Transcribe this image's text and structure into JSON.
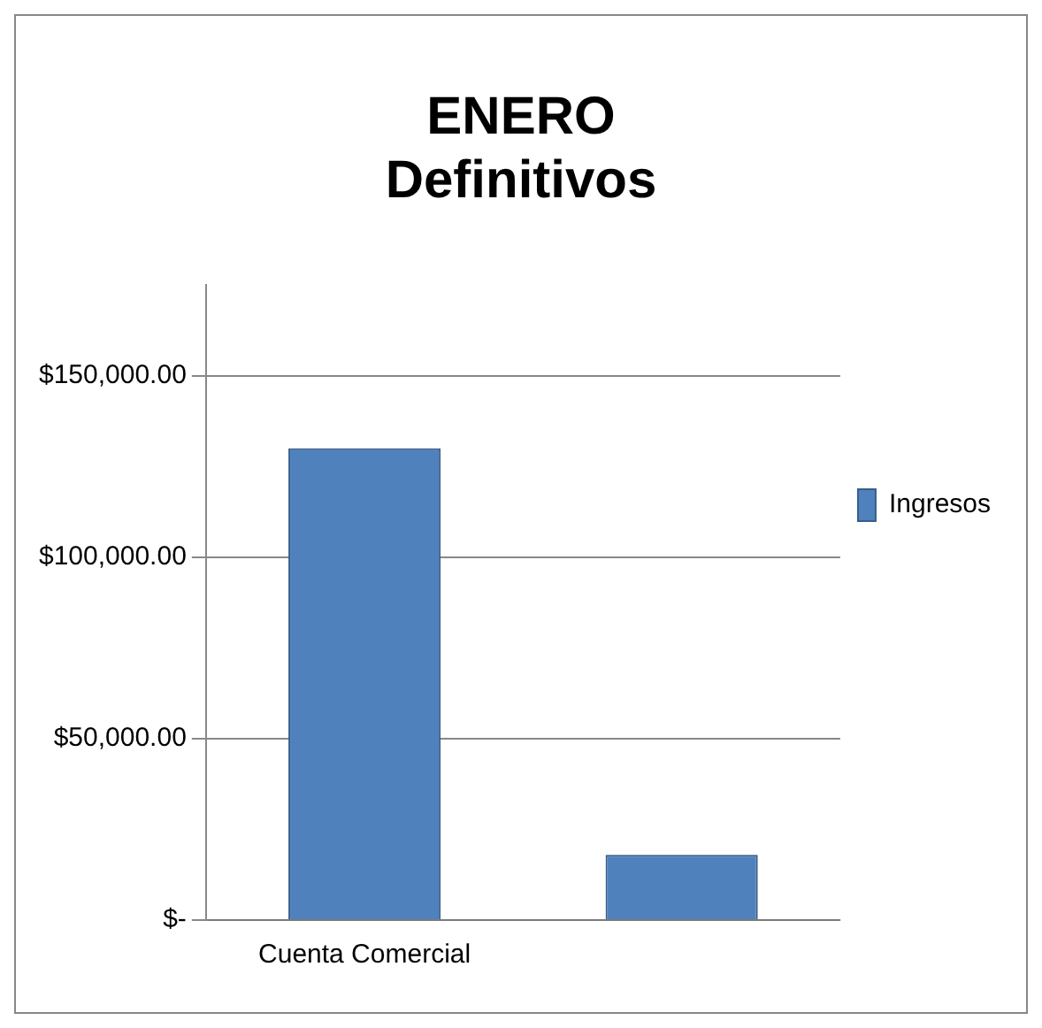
{
  "chart_data": {
    "type": "bar",
    "title": [
      "ENERO",
      "Definitivos"
    ],
    "categories": [
      "Cuenta Comercial",
      null
    ],
    "series": [
      {
        "name": "Ingresos",
        "color": "#4f81bd",
        "values": [
          130000,
          18000
        ]
      }
    ],
    "ylim": [
      0,
      175000
    ],
    "yticks": [
      {
        "value": 0,
        "label": "$-"
      },
      {
        "value": 50000,
        "label": "$50,000.00"
      },
      {
        "value": 100000,
        "label": "$100,000.00"
      },
      {
        "value": 150000,
        "label": "$150,000.00"
      }
    ],
    "grid": "y",
    "legend": "right"
  }
}
